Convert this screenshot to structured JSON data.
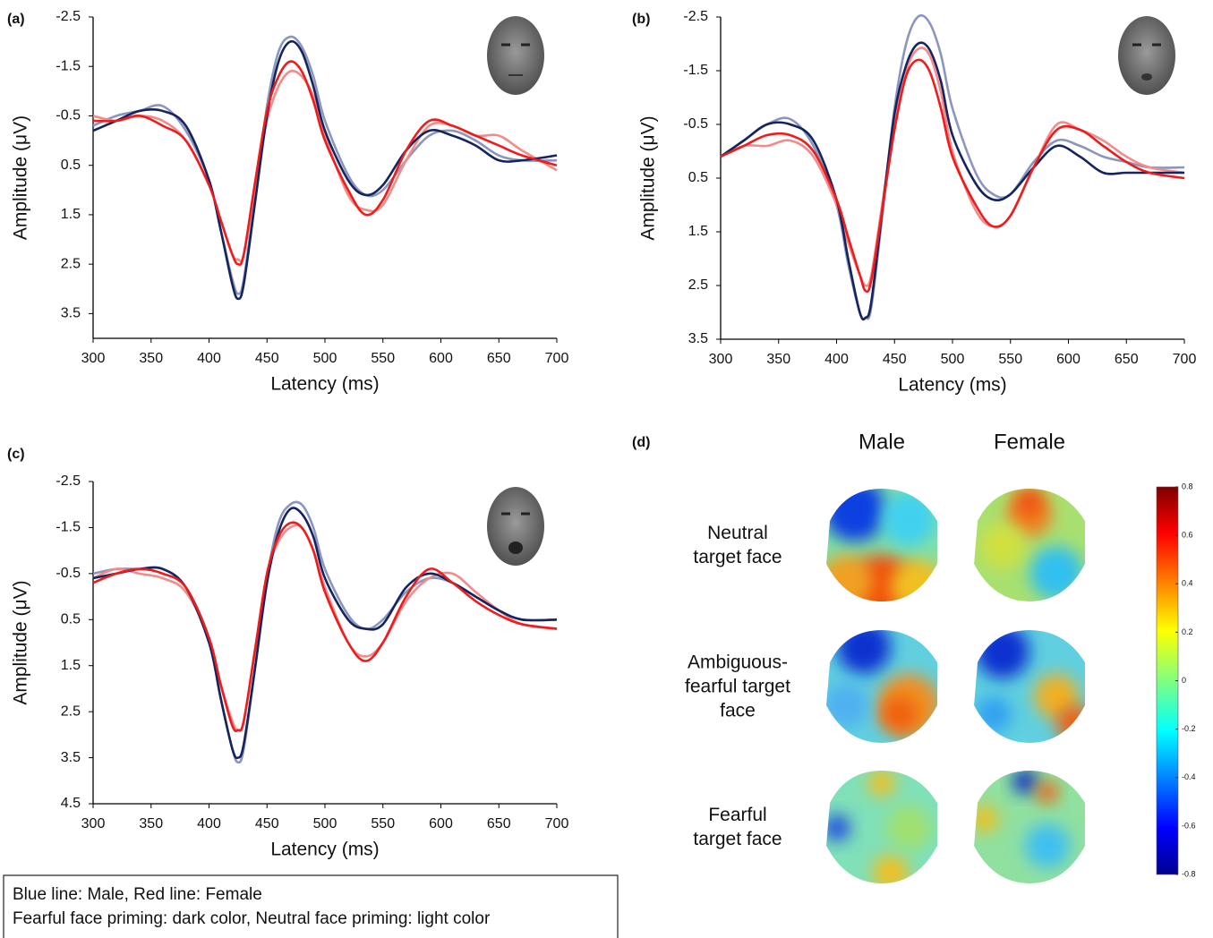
{
  "chart_data": [
    {
      "type": "line",
      "panel_label": "(a)",
      "xlabel": "Latency (ms)",
      "ylabel": "Amplitude (μV)",
      "y_inverted": true,
      "xlim": [
        300,
        700
      ],
      "xticks": [
        300,
        350,
        400,
        450,
        500,
        550,
        600,
        650,
        700
      ],
      "ylim": [
        -2.5,
        4
      ],
      "yticks": [
        -2.5,
        -1.5,
        -0.5,
        0.5,
        1.5,
        2.5,
        3.5
      ],
      "x": [
        300,
        320,
        340,
        360,
        380,
        400,
        410,
        420,
        425,
        430,
        440,
        450,
        460,
        470,
        480,
        490,
        500,
        520,
        535,
        550,
        570,
        590,
        610,
        630,
        650,
        670,
        700
      ],
      "series": [
        {
          "color": "#8a96bd",
          "values": [
            -0.3,
            -0.5,
            -0.6,
            -0.7,
            -0.2,
            0.8,
            1.8,
            2.8,
            3.1,
            2.8,
            1.1,
            -0.7,
            -1.8,
            -2.1,
            -1.9,
            -1.3,
            -0.4,
            0.7,
            1.1,
            1.0,
            0.4,
            -0.1,
            -0.2,
            0,
            0.3,
            0.4,
            0.4
          ]
        },
        {
          "color": "#f28b8b",
          "values": [
            -0.5,
            -0.4,
            -0.5,
            -0.4,
            0,
            0.9,
            1.6,
            2.3,
            2.4,
            2.3,
            0.9,
            -0.4,
            -1.1,
            -1.4,
            -1.3,
            -0.9,
            -0.1,
            1.1,
            1.4,
            1.3,
            0.4,
            -0.3,
            -0.3,
            -0.1,
            -0.1,
            0.2,
            0.6
          ]
        },
        {
          "color": "#14245e",
          "values": [
            -0.2,
            -0.4,
            -0.6,
            -0.6,
            -0.3,
            0.8,
            1.8,
            2.9,
            3.2,
            2.9,
            1.2,
            -0.5,
            -1.6,
            -2.0,
            -1.8,
            -1.1,
            -0.2,
            0.8,
            1.1,
            0.9,
            0.2,
            -0.2,
            -0.1,
            0.1,
            0.4,
            0.4,
            0.3
          ]
        },
        {
          "color": "#ee1c1c",
          "values": [
            -0.4,
            -0.4,
            -0.5,
            -0.3,
            0,
            0.9,
            1.6,
            2.3,
            2.5,
            2.3,
            0.8,
            -0.6,
            -1.3,
            -1.6,
            -1.4,
            -0.8,
            0,
            1.0,
            1.5,
            1.2,
            0.2,
            -0.4,
            -0.3,
            -0.1,
            0.1,
            0.3,
            0.5
          ]
        }
      ]
    },
    {
      "type": "line",
      "panel_label": "(b)",
      "xlabel": "Latency (ms)",
      "ylabel": "Amplitude (μV)",
      "y_inverted": true,
      "xlim": [
        300,
        700
      ],
      "xticks": [
        300,
        350,
        400,
        450,
        500,
        550,
        600,
        650,
        700
      ],
      "ylim": [
        -2.5,
        3.5
      ],
      "yticks": [
        -2.5,
        -1.5,
        -0.5,
        0.5,
        1.5,
        2.5,
        3.5
      ],
      "x": [
        300,
        320,
        340,
        360,
        380,
        400,
        410,
        420,
        425,
        430,
        440,
        450,
        460,
        470,
        480,
        490,
        500,
        520,
        535,
        550,
        570,
        590,
        610,
        630,
        650,
        670,
        700
      ],
      "series": [
        {
          "color": "#8a96bd",
          "values": [
            0.1,
            -0.2,
            -0.5,
            -0.6,
            -0.1,
            1.0,
            2.1,
            3.0,
            3.1,
            2.9,
            1.1,
            -0.8,
            -2.0,
            -2.5,
            -2.4,
            -1.8,
            -0.8,
            0.4,
            0.8,
            0.8,
            0.2,
            -0.2,
            -0.1,
            0.1,
            0.2,
            0.3,
            0.3
          ]
        },
        {
          "color": "#f28b8b",
          "values": [
            0.1,
            -0.1,
            -0.1,
            -0.2,
            0.1,
            1.0,
            1.7,
            2.3,
            2.5,
            2.3,
            0.9,
            -0.5,
            -1.5,
            -1.9,
            -1.8,
            -1.1,
            0,
            1.1,
            1.4,
            1.2,
            0.3,
            -0.5,
            -0.4,
            -0.2,
            0.1,
            0.3,
            0.4
          ]
        },
        {
          "color": "#14245e",
          "values": [
            0.1,
            -0.2,
            -0.5,
            -0.5,
            -0.2,
            0.9,
            2.0,
            3.0,
            3.1,
            2.8,
            1.0,
            -0.7,
            -1.6,
            -2.0,
            -1.9,
            -1.3,
            -0.3,
            0.6,
            0.9,
            0.8,
            0.3,
            -0.1,
            0.1,
            0.4,
            0.4,
            0.4,
            0.4
          ]
        },
        {
          "color": "#ee1c1c",
          "values": [
            0.1,
            -0.1,
            -0.3,
            -0.3,
            0,
            0.9,
            1.6,
            2.3,
            2.6,
            2.4,
            1.0,
            -0.4,
            -1.4,
            -1.7,
            -1.5,
            -0.8,
            0.1,
            1.0,
            1.4,
            1.2,
            0.3,
            -0.4,
            -0.4,
            -0.1,
            0.2,
            0.4,
            0.5
          ]
        }
      ]
    },
    {
      "type": "line",
      "panel_label": "(c)",
      "xlabel": "Latency (ms)",
      "ylabel": "Amplitude (μV)",
      "y_inverted": true,
      "xlim": [
        300,
        700
      ],
      "xticks": [
        300,
        350,
        400,
        450,
        500,
        550,
        600,
        650,
        700
      ],
      "ylim": [
        -2.5,
        4.5
      ],
      "yticks": [
        -2.5,
        -1.5,
        -0.5,
        0.5,
        1.5,
        2.5,
        3.5,
        4.5
      ],
      "x": [
        300,
        320,
        340,
        360,
        380,
        400,
        410,
        420,
        425,
        430,
        440,
        450,
        460,
        470,
        480,
        490,
        500,
        520,
        535,
        550,
        570,
        590,
        610,
        630,
        650,
        670,
        700
      ],
      "series": [
        {
          "color": "#8a96bd",
          "values": [
            -0.5,
            -0.6,
            -0.6,
            -0.6,
            -0.2,
            0.9,
            2.2,
            3.3,
            3.6,
            3.3,
            1.5,
            -0.4,
            -1.6,
            -2.0,
            -2.0,
            -1.5,
            -0.6,
            0.4,
            0.7,
            0.5,
            -0.1,
            -0.4,
            -0.3,
            0,
            0.3,
            0.5,
            0.5
          ]
        },
        {
          "color": "#f28b8b",
          "values": [
            -0.4,
            -0.6,
            -0.5,
            -0.4,
            -0.1,
            0.9,
            1.9,
            2.7,
            2.9,
            2.7,
            1.1,
            -0.5,
            -1.2,
            -1.5,
            -1.5,
            -1.0,
            -0.2,
            1.0,
            1.3,
            1.0,
            0.1,
            -0.4,
            -0.5,
            -0.1,
            0.3,
            0.6,
            0.7
          ]
        },
        {
          "color": "#14245e",
          "values": [
            -0.4,
            -0.5,
            -0.6,
            -0.6,
            -0.2,
            1.0,
            2.2,
            3.3,
            3.5,
            3.2,
            1.5,
            -0.3,
            -1.4,
            -1.9,
            -1.8,
            -1.3,
            -0.4,
            0.5,
            0.7,
            0.6,
            -0.2,
            -0.5,
            -0.3,
            0,
            0.3,
            0.5,
            0.5
          ]
        },
        {
          "color": "#ee1c1c",
          "values": [
            -0.3,
            -0.5,
            -0.6,
            -0.5,
            -0.2,
            0.9,
            1.9,
            2.8,
            2.9,
            2.7,
            1.1,
            -0.5,
            -1.3,
            -1.6,
            -1.5,
            -1.0,
            -0.1,
            1.0,
            1.4,
            1.0,
            0,
            -0.6,
            -0.3,
            0.1,
            0.4,
            0.6,
            0.7
          ]
        }
      ]
    },
    {
      "type": "topomap",
      "panel_label": "(d)",
      "columns": [
        "Male",
        "Female"
      ],
      "rows": [
        [
          "Neutral",
          "target face"
        ],
        [
          "Ambiguous-",
          "fearful target",
          "face"
        ],
        [
          "Fearful",
          "target face"
        ]
      ],
      "colorbar_lim": [
        -0.8,
        0.8
      ],
      "colorbar_ticks": [
        -0.8,
        -0.6,
        -0.4,
        -0.2,
        0,
        0.2,
        0.4,
        0.6,
        0.8
      ]
    }
  ],
  "legend_text": [
    "Blue line: Male, Red line: Female",
    "Fearful face priming: dark color, Neutral face priming: light color"
  ]
}
